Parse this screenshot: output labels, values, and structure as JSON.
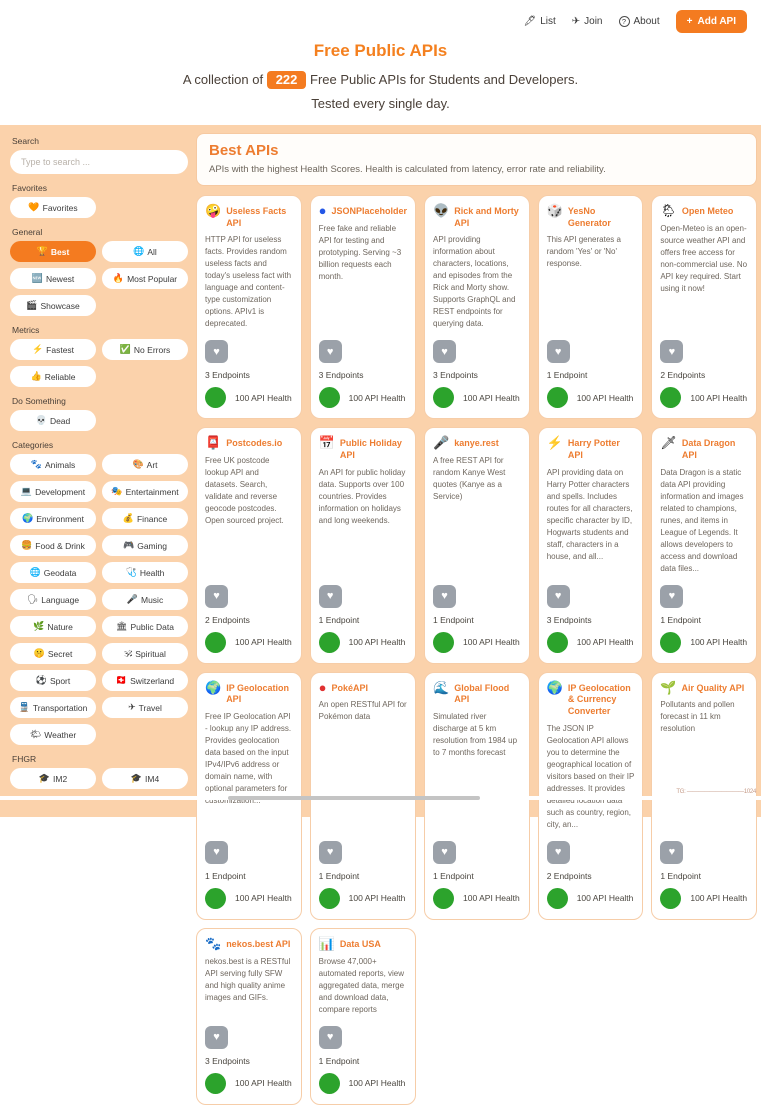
{
  "nav": {
    "items": [
      {
        "label": "List",
        "icon": "🖋",
        "name": "list"
      },
      {
        "label": "Join",
        "icon": "✈",
        "name": "join"
      },
      {
        "label": "About",
        "icon": "?",
        "name": "about",
        "circled": true
      }
    ],
    "add_api_label": "Add API",
    "add_api_icon": "+"
  },
  "header": {
    "title": "Free Public APIs",
    "subtitle_prefix": "A collection of",
    "count": "222",
    "subtitle_suffix": "Free Public APIs for Students and Developers.",
    "subtitle_line2": "Tested every single day."
  },
  "sidebar": {
    "search": {
      "label": "Search",
      "placeholder": "Type to search ..."
    },
    "sections": [
      {
        "label": "Favorites",
        "buttons": [
          {
            "label": "Favorites",
            "icon": "🧡"
          }
        ]
      },
      {
        "label": "General",
        "buttons": [
          {
            "label": "Best",
            "icon": "🏆",
            "selected": true
          },
          {
            "label": "All",
            "icon": "🌐"
          },
          {
            "label": "Newest",
            "icon": "🆕"
          },
          {
            "label": "Most Popular",
            "icon": "🔥"
          },
          {
            "label": "Showcase",
            "icon": "🎬"
          }
        ]
      },
      {
        "label": "Metrics",
        "buttons": [
          {
            "label": "Fastest",
            "icon": "⚡"
          },
          {
            "label": "No Errors",
            "icon": "✅"
          },
          {
            "label": "Reliable",
            "icon": "👍"
          }
        ]
      },
      {
        "label": "Do Something",
        "buttons": [
          {
            "label": "Dead",
            "icon": "💀"
          }
        ]
      },
      {
        "label": "Categories",
        "buttons": [
          {
            "label": "Animals",
            "icon": "🐾"
          },
          {
            "label": "Art",
            "icon": "🎨"
          },
          {
            "label": "Development",
            "icon": "💻"
          },
          {
            "label": "Entertainment",
            "icon": "🎭"
          },
          {
            "label": "Environment",
            "icon": "🌍"
          },
          {
            "label": "Finance",
            "icon": "💰"
          },
          {
            "label": "Food & Drink",
            "icon": "🍔"
          },
          {
            "label": "Gaming",
            "icon": "🎮"
          },
          {
            "label": "Geodata",
            "icon": "🌐"
          },
          {
            "label": "Health",
            "icon": "🩺"
          },
          {
            "label": "Language",
            "icon": "🗣"
          },
          {
            "label": "Music",
            "icon": "🎤"
          },
          {
            "label": "Nature",
            "icon": "🌿"
          },
          {
            "label": "Public Data",
            "icon": "🏛"
          },
          {
            "label": "Secret",
            "icon": "🤫"
          },
          {
            "label": "Spiritual",
            "icon": "🕉"
          },
          {
            "label": "Sport",
            "icon": "⚽"
          },
          {
            "label": "Switzerland",
            "icon": "🇨🇭"
          },
          {
            "label": "Transportation",
            "icon": "🚆"
          },
          {
            "label": "Travel",
            "icon": "✈"
          },
          {
            "label": "Weather",
            "icon": "🌤"
          }
        ]
      },
      {
        "label": "FHGR",
        "buttons": [
          {
            "label": "IM2",
            "icon": "🎓"
          },
          {
            "label": "IM4",
            "icon": "🎓"
          }
        ]
      }
    ]
  },
  "main": {
    "heading": "Best APIs",
    "description": "APIs with the highest Health Scores. Health is calculated from latency, error rate and reliability.",
    "cards": [
      {
        "icon": "🤪",
        "title": "Useless Facts API",
        "description": "HTTP API for useless facts. Provides random useless facts and today's useless fact with language and content-type customization options. APIv1 is deprecated.",
        "endpoints": "3 Endpoints",
        "health": "100 API Health"
      },
      {
        "icon": "●",
        "icon_color": "#2457e6",
        "title": "JSONPlaceholder",
        "description": "Free fake and reliable API for testing and prototyping. Serving ~3 billion requests each month.",
        "endpoints": "3 Endpoints",
        "health": "100 API Health"
      },
      {
        "icon": "👽",
        "title": "Rick and Morty API",
        "description": "API providing information about characters, locations, and episodes from the Rick and Morty show. Supports GraphQL and REST endpoints for querying data.",
        "endpoints": "3 Endpoints",
        "health": "100 API Health"
      },
      {
        "icon": "🎲",
        "title": "YesNo Generator",
        "description": "This API generates a random 'Yes' or 'No' response.",
        "endpoints": "1 Endpoint",
        "health": "100 API Health"
      },
      {
        "icon": "🌦",
        "title": "Open Meteo",
        "description": "Open-Meteo is an open-source weather API and offers free access for non-commercial use. No API key required. Start using it now!",
        "endpoints": "2 Endpoints",
        "health": "100 API Health"
      },
      {
        "icon": "📮",
        "title": "Postcodes.io",
        "description": "Free UK postcode lookup API and datasets. Search, validate and reverse geocode postcodes. Open sourced project.",
        "endpoints": "2 Endpoints",
        "health": "100 API Health"
      },
      {
        "icon": "📅",
        "title": "Public Holiday API",
        "description": "An API for public holiday data. Supports over 100 countries. Provides information on holidays and long weekends.",
        "endpoints": "1 Endpoint",
        "health": "100 API Health"
      },
      {
        "icon": "🎤",
        "title": "kanye.rest",
        "description": "A free REST API for random Kanye West quotes (Kanye as a Service)",
        "endpoints": "1 Endpoint",
        "health": "100 API Health"
      },
      {
        "icon": "⚡",
        "title": "Harry Potter API",
        "description": "API providing data on Harry Potter characters and spells. Includes routes for all characters, specific character by ID, Hogwarts students and staff, characters in a house, and all...",
        "endpoints": "3 Endpoints",
        "health": "100 API Health"
      },
      {
        "icon": "🗡",
        "title": "Data Dragon API",
        "description": "Data Dragon is a static data API providing information and images related to champions, runes, and items in League of Legends. It allows developers to access and download data files...",
        "endpoints": "1 Endpoint",
        "health": "100 API Health"
      },
      {
        "icon": "🌍",
        "title": "IP Geolocation API",
        "description": "Free IP Geolocation API - lookup any IP address. Provides geolocation data based on the input IPv4/IPv6 address or domain name, with optional parameters for customization...",
        "endpoints": "1 Endpoint",
        "health": "100 API Health"
      },
      {
        "icon": "●",
        "icon_color": "#e03131",
        "title": "PokéAPI",
        "description": "An open RESTful API for Pokémon data",
        "endpoints": "1 Endpoint",
        "health": "100 API Health"
      },
      {
        "icon": "🌊",
        "title": "Global Flood API",
        "description": "Simulated river discharge at 5 km resolution from 1984 up to 7 months forecast",
        "endpoints": "1 Endpoint",
        "health": "100 API Health"
      },
      {
        "icon": "🌍",
        "title": "IP Geolocation & Currency Converter",
        "description": "The JSON IP Geolocation API allows you to determine the geographical location of visitors based on their IP addresses. It provides detailed location data such as country, region, city, an...",
        "endpoints": "2 Endpoints",
        "health": "100 API Health"
      },
      {
        "icon": "🌱",
        "title": "Air Quality API",
        "description": "Pollutants and pollen forecast in 11 km resolution",
        "endpoints": "1 Endpoint",
        "health": "100 API Health"
      },
      {
        "icon": "🐾",
        "title": "nekos.best API",
        "description": "nekos.best is a RESTful API serving fully SFW and high quality anime images and GIFs.",
        "endpoints": "3 Endpoints",
        "health": "100 API Health"
      },
      {
        "icon": "📊",
        "title": "Data USA",
        "description": "Browse 47,000+ automated reports, view aggregated data, merge and download data, compare reports",
        "endpoints": "1 Endpoint",
        "health": "100 API Health"
      }
    ]
  },
  "icons": {
    "heart": "♥"
  },
  "watermark": "TG: ——————————1024",
  "colors": {
    "accent": "#f47b20",
    "title_orange": "#ed7d31",
    "health_green": "#2ca32c",
    "background_peach": "#fbd2ab",
    "heart_gray": "#9ba1a9"
  }
}
